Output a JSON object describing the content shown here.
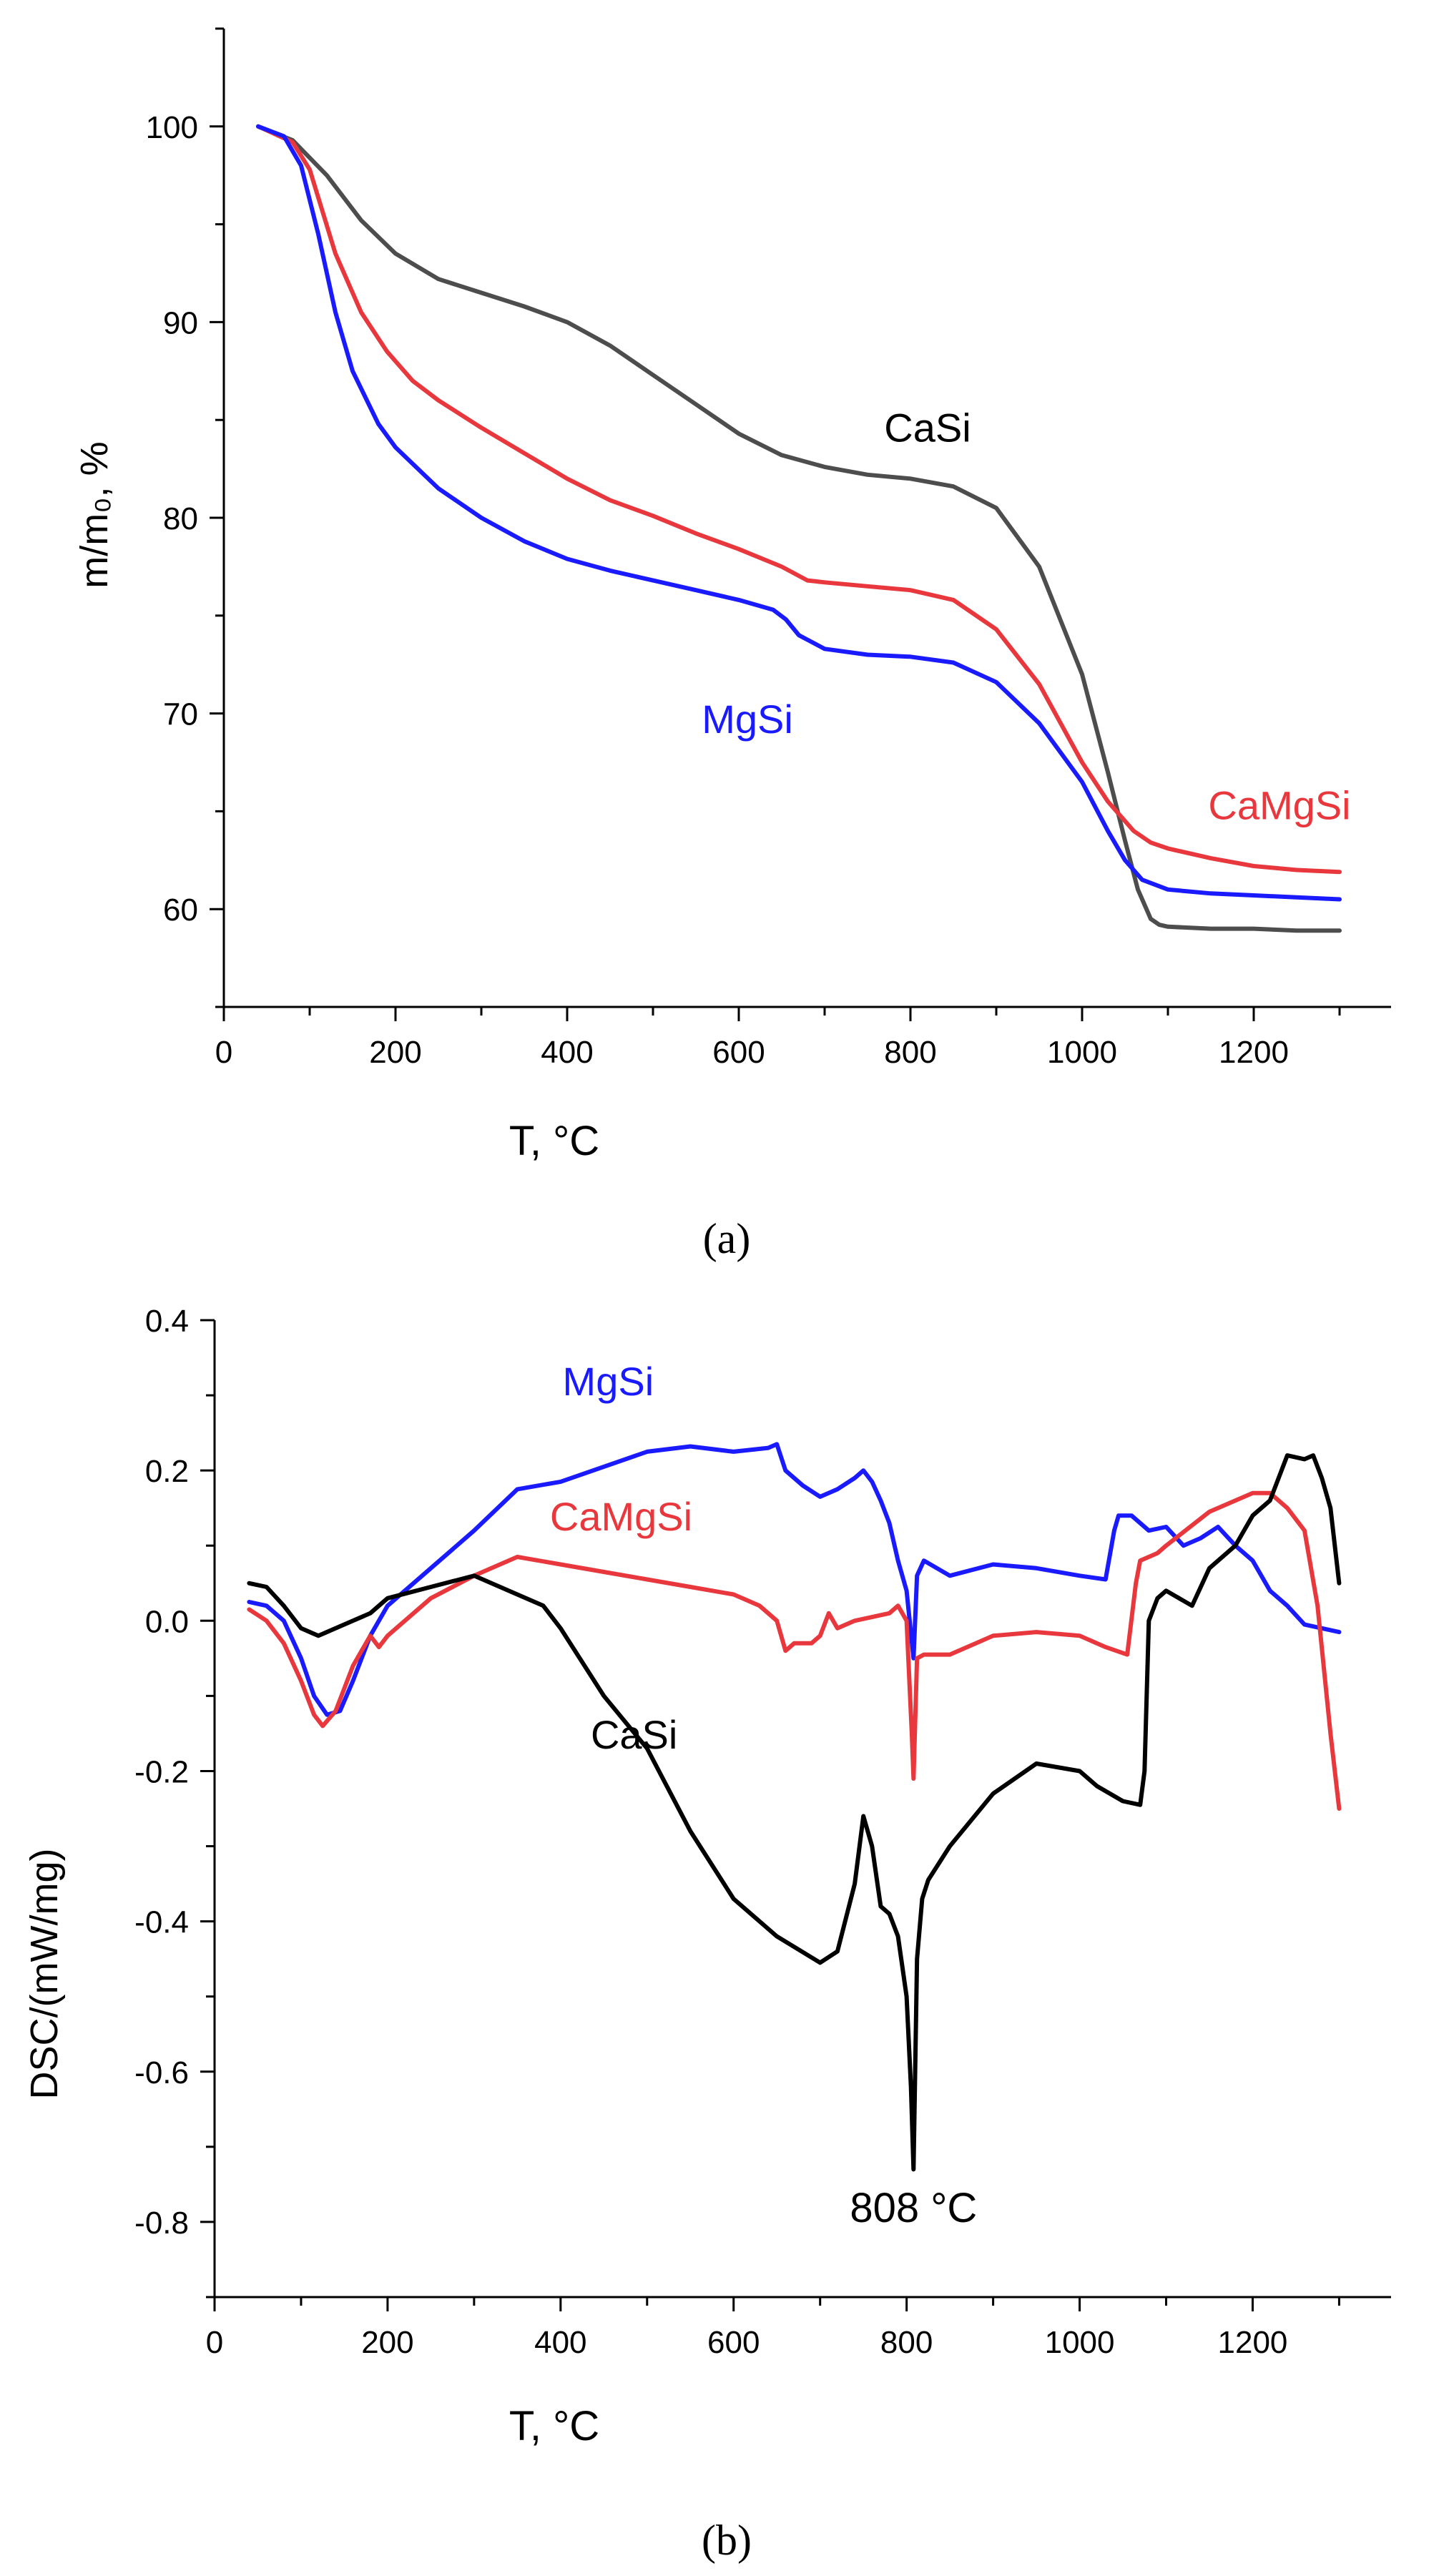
{
  "chart_data": [
    {
      "type": "line",
      "panel_label": "(a)",
      "xlabel": "T, °C",
      "ylabel": "m/m₀, %",
      "xlim": [
        0,
        1360
      ],
      "ylim": [
        55,
        105
      ],
      "x_ticks": [
        0,
        200,
        400,
        600,
        800,
        1000,
        1200
      ],
      "y_ticks": [
        60,
        70,
        80,
        90,
        100
      ],
      "series": [
        {
          "name": "CaSi",
          "color": "#4d4d4d",
          "x": [
            40,
            80,
            120,
            160,
            200,
            250,
            300,
            350,
            400,
            450,
            500,
            550,
            600,
            650,
            700,
            750,
            800,
            850,
            900,
            950,
            1000,
            1030,
            1050,
            1065,
            1080,
            1090,
            1100,
            1150,
            1200,
            1250,
            1300
          ],
          "y": [
            100,
            99.3,
            97.5,
            95.2,
            93.5,
            92.2,
            91.5,
            90.8,
            90.0,
            88.8,
            87.3,
            85.8,
            84.3,
            83.2,
            82.6,
            82.2,
            82.0,
            81.6,
            80.5,
            77.5,
            72.0,
            67.0,
            63.5,
            61.0,
            59.5,
            59.2,
            59.1,
            59.0,
            59.0,
            58.9,
            58.9
          ]
        },
        {
          "name": "CaMgSi",
          "color": "#e8383d",
          "x": [
            40,
            80,
            100,
            130,
            160,
            190,
            220,
            250,
            300,
            350,
            400,
            450,
            500,
            550,
            600,
            650,
            680,
            700,
            750,
            800,
            850,
            900,
            950,
            1000,
            1030,
            1060,
            1080,
            1100,
            1150,
            1200,
            1250,
            1300
          ],
          "y": [
            100,
            99.2,
            97.8,
            93.5,
            90.5,
            88.5,
            87.0,
            86.0,
            84.6,
            83.3,
            82.0,
            80.9,
            80.1,
            79.2,
            78.4,
            77.5,
            76.8,
            76.7,
            76.5,
            76.3,
            75.8,
            74.3,
            71.5,
            67.5,
            65.5,
            64.0,
            63.4,
            63.1,
            62.6,
            62.2,
            62.0,
            61.9
          ]
        },
        {
          "name": "MgSi",
          "color": "#1a1aff",
          "x": [
            40,
            70,
            90,
            110,
            130,
            150,
            180,
            200,
            250,
            300,
            350,
            400,
            450,
            500,
            550,
            600,
            640,
            655,
            670,
            700,
            750,
            800,
            850,
            900,
            950,
            1000,
            1030,
            1050,
            1070,
            1100,
            1150,
            1200,
            1250,
            1300
          ],
          "y": [
            100,
            99.5,
            98.0,
            94.5,
            90.5,
            87.5,
            84.8,
            83.6,
            81.5,
            80.0,
            78.8,
            77.9,
            77.3,
            76.8,
            76.3,
            75.8,
            75.3,
            74.8,
            74.0,
            73.3,
            73.0,
            72.9,
            72.6,
            71.6,
            69.5,
            66.5,
            64.0,
            62.5,
            61.5,
            61.0,
            60.8,
            60.7,
            60.6,
            60.5
          ]
        }
      ],
      "annotations": [
        {
          "text": "CaSi",
          "x": 820,
          "y": 83.9,
          "color": "#000000"
        },
        {
          "text": "CaMgSi",
          "x": 1230,
          "y": 64.6,
          "color": "#e8383d"
        },
        {
          "text": "MgSi",
          "x": 610,
          "y": 69.0,
          "color": "#1a1aff"
        }
      ]
    },
    {
      "type": "line",
      "panel_label": "(b)",
      "xlabel": "T, °C",
      "ylabel": "DSC/(mW/mg)",
      "xlim": [
        0,
        1360
      ],
      "ylim": [
        -0.9,
        0.4
      ],
      "x_ticks": [
        0,
        200,
        400,
        600,
        800,
        1000,
        1200
      ],
      "y_ticks": [
        -0.8,
        -0.6,
        -0.4,
        -0.2,
        0.0,
        0.2,
        0.4
      ],
      "series": [
        {
          "name": "MgSi",
          "color": "#1a1aff",
          "x": [
            40,
            60,
            80,
            100,
            115,
            130,
            145,
            160,
            180,
            200,
            250,
            300,
            350,
            400,
            450,
            500,
            550,
            600,
            640,
            650,
            660,
            680,
            700,
            720,
            740,
            750,
            760,
            770,
            780,
            790,
            800,
            808,
            812,
            820,
            850,
            900,
            950,
            1000,
            1030,
            1040,
            1045,
            1060,
            1080,
            1100,
            1120,
            1140,
            1160,
            1180,
            1200,
            1220,
            1240,
            1260,
            1280,
            1300
          ],
          "y": [
            0.025,
            0.02,
            0.0,
            -0.05,
            -0.1,
            -0.125,
            -0.12,
            -0.08,
            -0.02,
            0.02,
            0.07,
            0.12,
            0.175,
            0.185,
            0.205,
            0.225,
            0.232,
            0.225,
            0.23,
            0.235,
            0.2,
            0.18,
            0.165,
            0.175,
            0.19,
            0.2,
            0.185,
            0.16,
            0.13,
            0.08,
            0.04,
            -0.05,
            0.06,
            0.08,
            0.06,
            0.075,
            0.07,
            0.06,
            0.055,
            0.12,
            0.14,
            0.14,
            0.12,
            0.125,
            0.1,
            0.11,
            0.125,
            0.1,
            0.08,
            0.04,
            0.02,
            -0.005,
            -0.01,
            -0.015
          ]
        },
        {
          "name": "CaMgSi",
          "color": "#e8383d",
          "x": [
            40,
            60,
            80,
            100,
            115,
            125,
            140,
            160,
            180,
            190,
            200,
            250,
            300,
            350,
            400,
            450,
            500,
            550,
            600,
            630,
            650,
            660,
            670,
            690,
            700,
            710,
            720,
            740,
            760,
            780,
            790,
            800,
            806,
            808,
            812,
            820,
            850,
            900,
            950,
            1000,
            1030,
            1055,
            1065,
            1070,
            1090,
            1100,
            1150,
            1200,
            1220,
            1240,
            1260,
            1275,
            1290,
            1300
          ],
          "y": [
            0.015,
            0.0,
            -0.03,
            -0.08,
            -0.125,
            -0.14,
            -0.12,
            -0.06,
            -0.02,
            -0.035,
            -0.02,
            0.03,
            0.06,
            0.085,
            0.075,
            0.065,
            0.055,
            0.045,
            0.035,
            0.02,
            0.0,
            -0.04,
            -0.03,
            -0.03,
            -0.02,
            0.01,
            -0.01,
            0.0,
            0.005,
            0.01,
            0.02,
            0.0,
            -0.15,
            -0.21,
            -0.05,
            -0.045,
            -0.045,
            -0.02,
            -0.015,
            -0.02,
            -0.035,
            -0.045,
            0.05,
            0.08,
            0.09,
            0.1,
            0.145,
            0.17,
            0.17,
            0.15,
            0.12,
            0.02,
            -0.15,
            -0.25
          ]
        },
        {
          "name": "CaSi",
          "color": "#000000",
          "x": [
            40,
            60,
            80,
            100,
            120,
            140,
            160,
            180,
            200,
            250,
            300,
            350,
            380,
            400,
            450,
            500,
            550,
            600,
            650,
            700,
            720,
            740,
            750,
            760,
            770,
            780,
            790,
            800,
            805,
            808,
            812,
            818,
            825,
            850,
            900,
            950,
            1000,
            1020,
            1050,
            1070,
            1075,
            1080,
            1090,
            1100,
            1130,
            1150,
            1180,
            1200,
            1220,
            1240,
            1260,
            1270,
            1280,
            1290,
            1300
          ],
          "y": [
            0.05,
            0.045,
            0.02,
            -0.01,
            -0.02,
            -0.01,
            0.0,
            0.01,
            0.03,
            0.045,
            0.06,
            0.035,
            0.02,
            -0.01,
            -0.1,
            -0.17,
            -0.28,
            -0.37,
            -0.42,
            -0.455,
            -0.44,
            -0.35,
            -0.26,
            -0.3,
            -0.38,
            -0.39,
            -0.42,
            -0.5,
            -0.62,
            -0.73,
            -0.45,
            -0.37,
            -0.345,
            -0.3,
            -0.23,
            -0.19,
            -0.2,
            -0.22,
            -0.24,
            -0.245,
            -0.2,
            0.0,
            0.03,
            0.04,
            0.02,
            0.07,
            0.1,
            0.14,
            0.16,
            0.22,
            0.215,
            0.22,
            0.19,
            0.15,
            0.05
          ]
        }
      ],
      "annotations": [
        {
          "text": "MgSi",
          "x": 455,
          "y": 0.3,
          "color": "#1a1aff"
        },
        {
          "text": "CaMgSi",
          "x": 470,
          "y": 0.12,
          "color": "#e8383d"
        },
        {
          "text": "CaSi",
          "x": 485,
          "y": -0.17,
          "color": "#000000"
        },
        {
          "text": "808 °C",
          "x": 808,
          "y": -0.8,
          "color": "#000000"
        }
      ]
    }
  ]
}
